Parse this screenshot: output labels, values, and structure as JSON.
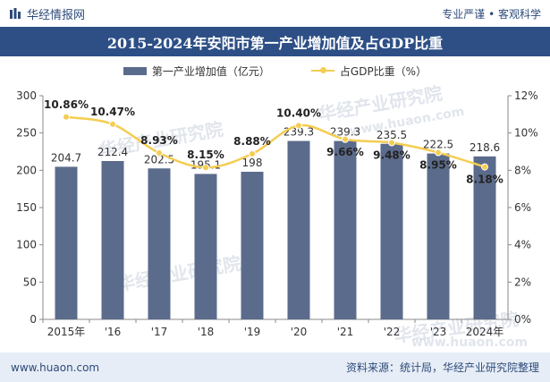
{
  "header": {
    "brand": "华经情报网",
    "tagline": "专业严谨 • 客观科学"
  },
  "chart_data": {
    "type": "bar",
    "title": "2015-2024年安阳市第一产业增加值及占GDP比重",
    "categories": [
      "2015年",
      "'16",
      "'17",
      "'18",
      "'19",
      "'20",
      "'21",
      "'22",
      "'23",
      "2024年"
    ],
    "series": [
      {
        "name": "第一产业增加值（亿元）",
        "type": "bar",
        "axis": "left",
        "values": [
          204.7,
          212.4,
          202.5,
          195.1,
          198,
          239.3,
          239.3,
          235.5,
          222.5,
          218.6
        ],
        "labels": [
          "204.7",
          "212.4",
          "202.5",
          "195.1",
          "198",
          "239.3",
          "239.3",
          "235.5",
          "222.5",
          "218.6"
        ]
      },
      {
        "name": "占GDP比重（%）",
        "type": "line",
        "axis": "right",
        "values": [
          10.86,
          10.47,
          8.93,
          8.15,
          8.88,
          10.4,
          9.66,
          9.48,
          8.95,
          8.18
        ],
        "labels": [
          "10.86%",
          "10.47%",
          "8.93%",
          "8.15%",
          "8.88%",
          "10.40%",
          "9.66%",
          "9.48%",
          "8.95%",
          "8.18%"
        ]
      }
    ],
    "y_left": {
      "min": 0,
      "max": 300,
      "ticks": [
        "0",
        "50",
        "100",
        "150",
        "200",
        "250",
        "300"
      ]
    },
    "y_right": {
      "min": 0,
      "max": 12,
      "ticks": [
        "0%",
        "2%",
        "4%",
        "6%",
        "8%",
        "10%",
        "12%"
      ]
    },
    "legend_position": "top-center",
    "grid": false,
    "colors": {
      "bar": "#5b6b8c",
      "line": "#f4cd52"
    }
  },
  "watermarks": [
    "华经产业研究院",
    "www.huaon.com"
  ],
  "footer": {
    "website": "www.huaon.com",
    "source": "资料来源：统计局，华经产业研究院整理"
  }
}
